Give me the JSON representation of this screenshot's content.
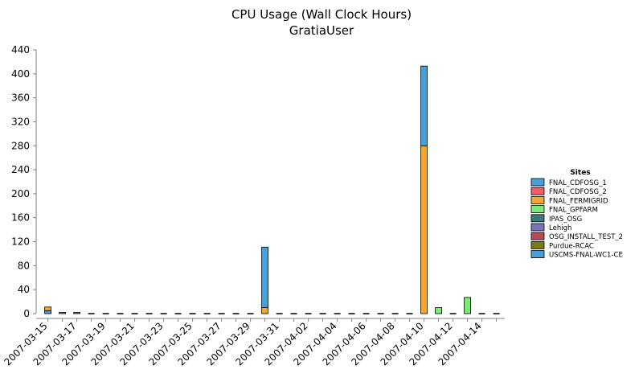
{
  "chart_data": {
    "type": "bar",
    "stacked": true,
    "title": "CPU Usage (Wall Clock Hours)",
    "subtitle": "GratiaUser",
    "xlabel": "",
    "ylabel": "",
    "ylim": [
      0,
      440
    ],
    "yticks": [
      0,
      40,
      80,
      120,
      160,
      200,
      240,
      280,
      320,
      360,
      400,
      440
    ],
    "grid": false,
    "legend": {
      "title": "Sites",
      "placement": "right"
    },
    "categories": [
      "2007-03-15",
      "2007-03-16",
      "2007-03-17",
      "2007-03-18",
      "2007-03-19",
      "2007-03-20",
      "2007-03-21",
      "2007-03-22",
      "2007-03-23",
      "2007-03-24",
      "2007-03-25",
      "2007-03-26",
      "2007-03-27",
      "2007-03-28",
      "2007-03-29",
      "2007-03-30",
      "2007-03-31",
      "2007-04-01",
      "2007-04-02",
      "2007-04-03",
      "2007-04-04",
      "2007-04-05",
      "2007-04-06",
      "2007-04-07",
      "2007-04-08",
      "2007-04-09",
      "2007-04-10",
      "2007-04-11",
      "2007-04-12",
      "2007-04-13",
      "2007-04-14",
      "2007-04-15"
    ],
    "tick_labels": [
      "2007-03-15",
      "2007-03-17",
      "2007-03-19",
      "2007-03-21",
      "2007-03-23",
      "2007-03-25",
      "2007-03-27",
      "2007-03-29",
      "2007-03-31",
      "2007-04-02",
      "2007-04-04",
      "2007-04-06",
      "2007-04-08",
      "2007-04-10",
      "2007-04-12",
      "2007-04-14"
    ],
    "series": [
      {
        "name": "FNAL_CDFOSG_1",
        "color": "#4a9fd8",
        "values": [
          5,
          2,
          1,
          0,
          0,
          0,
          0,
          0,
          0,
          0,
          0,
          0,
          0,
          0,
          0,
          0,
          0,
          0,
          0,
          0,
          0,
          0,
          0,
          0,
          0,
          0,
          0,
          0,
          0,
          0,
          0,
          0
        ]
      },
      {
        "name": "FNAL_CDFOSG_2",
        "color": "#f0606a",
        "values": [
          0,
          0,
          0,
          0,
          0,
          0,
          0,
          0,
          0,
          0,
          0,
          0,
          0,
          0,
          0,
          0,
          0,
          0,
          0,
          0,
          0,
          0,
          0,
          0,
          0,
          0,
          0,
          0,
          0,
          0,
          0,
          0
        ]
      },
      {
        "name": "FNAL_FERMIGRID",
        "color": "#f0a830",
        "values": [
          6,
          0,
          0,
          0,
          0,
          0,
          0,
          0,
          0,
          0,
          0,
          0,
          0,
          0,
          0,
          10,
          0,
          0,
          0,
          0,
          0,
          0,
          0,
          0,
          0,
          0,
          280,
          0,
          0,
          0,
          0,
          0
        ]
      },
      {
        "name": "FNAL_GPFARM",
        "color": "#7ee87a",
        "values": [
          0,
          0,
          0,
          0,
          0,
          0,
          0,
          0,
          0,
          0,
          0,
          0,
          0,
          0,
          0,
          0,
          0,
          0,
          0,
          0,
          0,
          0,
          0,
          0,
          0,
          0,
          0,
          10,
          0,
          27,
          0,
          0
        ]
      },
      {
        "name": "IPAS_OSG",
        "color": "#3a7a78",
        "values": [
          0,
          0,
          0,
          0,
          0,
          0,
          0,
          0,
          0,
          0,
          0,
          0,
          0,
          0,
          0,
          0,
          0,
          0,
          0,
          0,
          0,
          0,
          0,
          0,
          0,
          0,
          0,
          0,
          0,
          0,
          0,
          0
        ]
      },
      {
        "name": "Lehigh",
        "color": "#7a72b8",
        "values": [
          0,
          0,
          0,
          0,
          0,
          0,
          0,
          0,
          0,
          0,
          0,
          0,
          0,
          0,
          0,
          0,
          0,
          0,
          0,
          0,
          0,
          0,
          0,
          0,
          0,
          0,
          0,
          0,
          0,
          0,
          0,
          0
        ]
      },
      {
        "name": "OSG_INSTALL_TEST_2",
        "color": "#b84a5a",
        "values": [
          0,
          0,
          0,
          0,
          0,
          0,
          0,
          0,
          0,
          0,
          0,
          0,
          0,
          0,
          0,
          0,
          0,
          0,
          0,
          0,
          0,
          0,
          0,
          0,
          0,
          0,
          0,
          0,
          0,
          0,
          0,
          0
        ]
      },
      {
        "name": "Purdue-RCAC",
        "color": "#7a7a1a",
        "values": [
          0,
          0,
          0,
          0,
          0,
          0,
          0,
          0,
          0,
          0,
          0,
          0,
          0,
          0,
          0,
          0,
          0,
          0,
          0,
          0,
          0,
          0,
          0,
          0,
          0,
          0,
          0,
          0,
          0,
          0,
          0,
          0
        ]
      },
      {
        "name": "USCMS-FNAL-WC1-CE",
        "color": "#4a9fd8",
        "values": [
          0,
          0,
          0,
          0,
          0,
          0,
          0,
          0,
          0,
          0,
          0,
          0,
          0,
          0,
          0,
          101,
          0,
          0,
          0,
          0,
          0,
          0,
          0,
          0,
          0,
          0,
          133,
          0,
          0,
          0,
          0,
          0
        ]
      }
    ]
  }
}
